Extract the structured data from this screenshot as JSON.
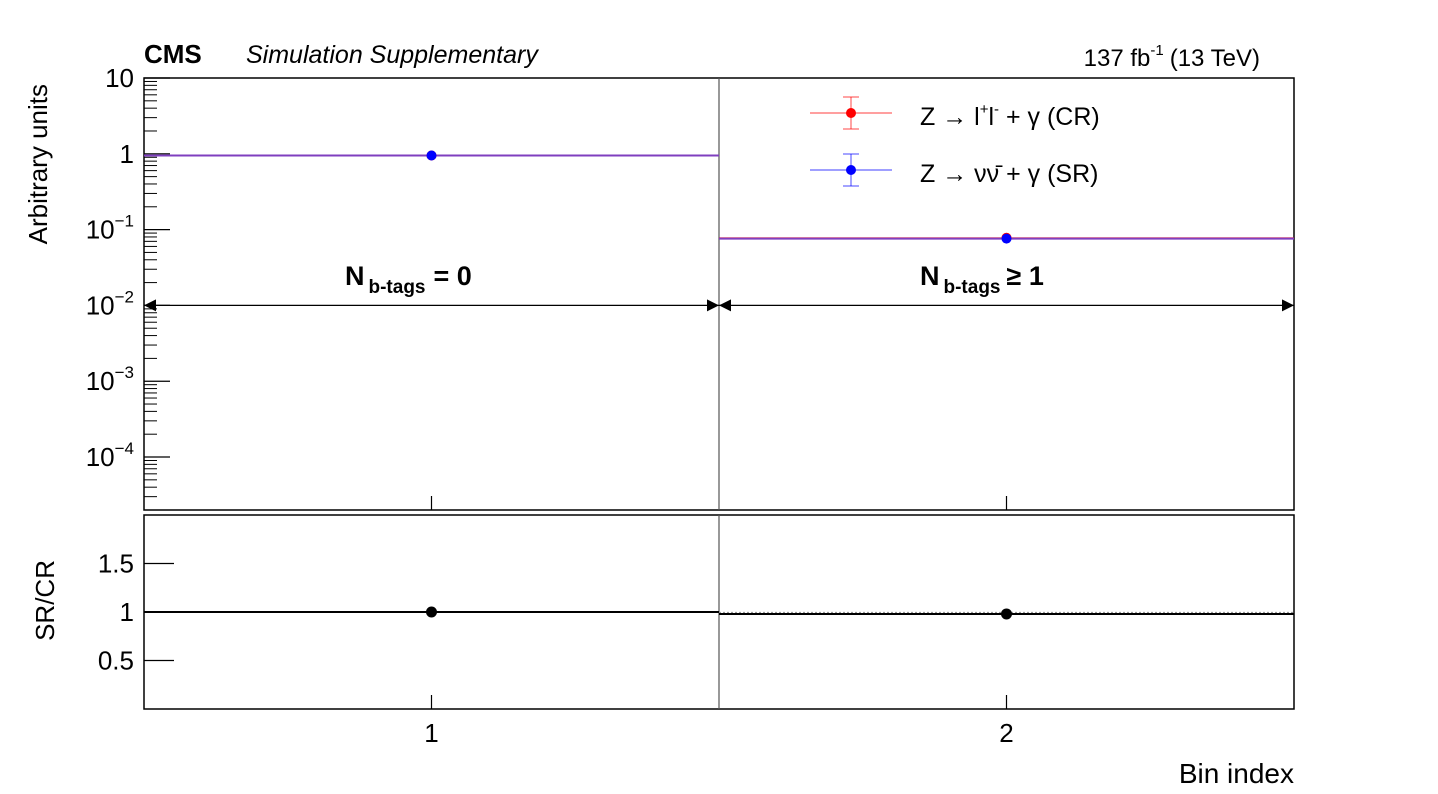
{
  "header": {
    "experiment": "CMS",
    "subtitle": "Simulation Supplementary",
    "lumi_value": "137 fb",
    "lumi_exp": "-1",
    "energy": "(13 TeV)"
  },
  "regions": [
    {
      "prefix": "N",
      "sub": "b-tags",
      "rel": "= 0"
    },
    {
      "prefix": "N",
      "sub": "b-tags",
      "rel": "≥ 1"
    }
  ],
  "legend": {
    "cr": {
      "pre": "Z → l",
      "sup1": "+",
      "mid": "l",
      "sup2": "-",
      "post": " + γ (CR)"
    },
    "sr": {
      "text": "Z → νν̄ + γ (SR)"
    }
  },
  "colors": {
    "cr": "#ff0000",
    "sr": "#0000ff",
    "line": "#7f3fbf",
    "ratio": "#000000",
    "ratio_dotted": "#999999"
  },
  "chart_data": [
    {
      "type": "line",
      "panel": "upper",
      "ylabel": "Arbitrary units",
      "yscale": "log",
      "ylim": [
        2e-05,
        10
      ],
      "xlim": [
        0.5,
        2.5
      ],
      "y_ticks": [
        {
          "value": 10,
          "base": "10",
          "exp": ""
        },
        {
          "value": 1,
          "base": "1",
          "exp": ""
        },
        {
          "value": 0.1,
          "base": "10",
          "exp": "−1"
        },
        {
          "value": 0.01,
          "base": "10",
          "exp": "−2"
        },
        {
          "value": 0.001,
          "base": "10",
          "exp": "−3"
        },
        {
          "value": 0.0001,
          "base": "10",
          "exp": "−4"
        }
      ],
      "series": [
        {
          "name": "Z → l+l- + γ (CR)",
          "x": [
            1,
            2
          ],
          "y": [
            0.95,
            0.078
          ]
        },
        {
          "name": "Z → νν̄ + γ (SR)",
          "x": [
            1,
            2
          ],
          "y": [
            0.95,
            0.076
          ]
        }
      ]
    },
    {
      "type": "scatter",
      "panel": "lower",
      "ylabel": "SR/CR",
      "xlabel": "Bin index",
      "ylim": [
        0,
        2
      ],
      "xlim": [
        0.5,
        2.5
      ],
      "x_ticks": [
        "1",
        "2"
      ],
      "y_ticks": [
        "0.5",
        "1",
        "1.5"
      ],
      "series": [
        {
          "x": [
            1,
            2
          ],
          "y": [
            1.0,
            0.98
          ]
        }
      ]
    }
  ]
}
